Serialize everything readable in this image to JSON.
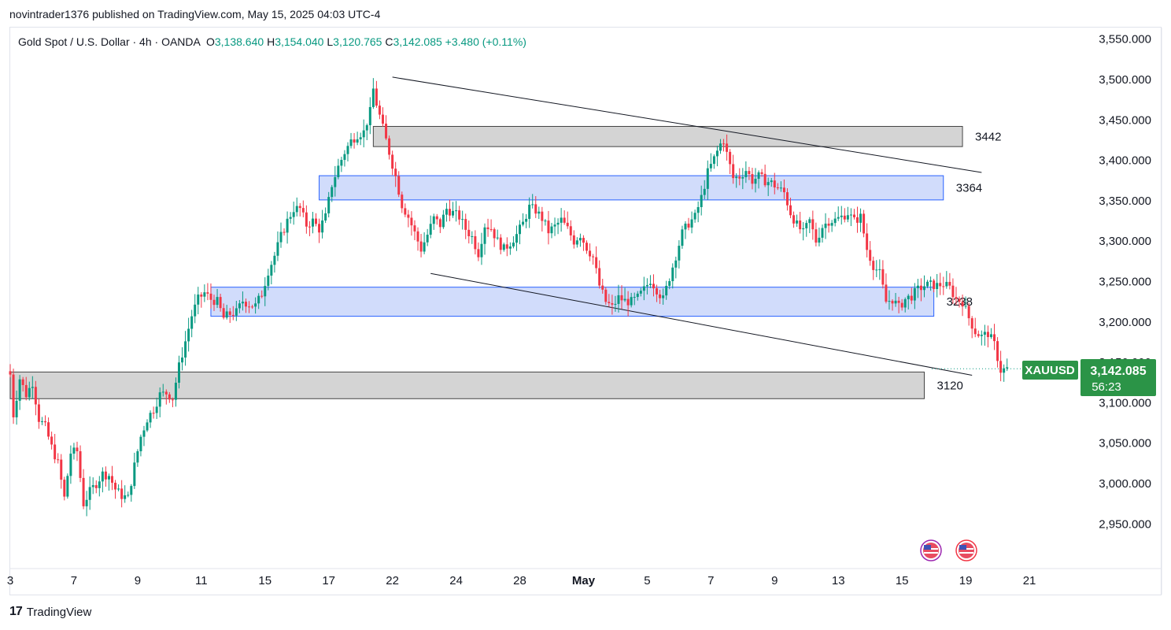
{
  "publish_line": "novintrader1376 published on TradingView.com, May 15, 2025 04:03 UTC-4",
  "legend": {
    "symbol": "Gold Spot / U.S. Dollar · 4h · OANDA",
    "o_label": "O",
    "o": "3,138.640",
    "h_label": "H",
    "h": "3,154.040",
    "l_label": "L",
    "l": "3,120.765",
    "c_label": "C",
    "c": "3,142.085",
    "change": "+3.480 (+0.11%)"
  },
  "price_tag": {
    "ticker": "XAUUSD",
    "price": "3,142.085",
    "countdown": "56:23"
  },
  "footer": {
    "brand": "TradingView",
    "logo": "17"
  },
  "colors": {
    "up": "#089981",
    "down": "#f23645",
    "blue_zone": "#d1dcfb",
    "blue_border": "#2962ff",
    "gray_zone": "#d4d4d4",
    "tag": "#2b9447"
  },
  "chart_data": {
    "type": "candlestick",
    "ylim": [
      2900,
      3570
    ],
    "y_ticks": [
      "3,550.000",
      "3,500.000",
      "3,450.000",
      "3,400.000",
      "3,350.000",
      "3,300.000",
      "3,250.000",
      "3,200.000",
      "3,150.000",
      "3,100.000",
      "3,050.000",
      "3,000.000",
      "2,950.000"
    ],
    "y_tick_values": [
      3550,
      3500,
      3450,
      3400,
      3350,
      3300,
      3250,
      3200,
      3150,
      3100,
      3050,
      3000,
      2950
    ],
    "x_ticks": [
      {
        "label": "3",
        "pos": 0
      },
      {
        "label": "7",
        "pos": 20
      },
      {
        "label": "9",
        "pos": 40
      },
      {
        "label": "11",
        "pos": 60
      },
      {
        "label": "15",
        "pos": 80
      },
      {
        "label": "17",
        "pos": 100
      },
      {
        "label": "22",
        "pos": 120
      },
      {
        "label": "24",
        "pos": 140
      },
      {
        "label": "28",
        "pos": 160
      },
      {
        "label": "May",
        "pos": 180
      },
      {
        "label": "5",
        "pos": 200
      },
      {
        "label": "7",
        "pos": 220
      },
      {
        "label": "9",
        "pos": 240
      },
      {
        "label": "13",
        "pos": 260
      },
      {
        "label": "15",
        "pos": 280
      },
      {
        "label": "19",
        "pos": 300
      },
      {
        "label": "21",
        "pos": 320
      }
    ],
    "anchors": [
      [
        0,
        3135
      ],
      [
        1,
        3085
      ],
      [
        3,
        3130
      ],
      [
        5,
        3110
      ],
      [
        7,
        3125
      ],
      [
        9,
        3080
      ],
      [
        11,
        3070
      ],
      [
        13,
        3045
      ],
      [
        15,
        3025
      ],
      [
        17,
        2982
      ],
      [
        19,
        3038
      ],
      [
        21,
        3040
      ],
      [
        23,
        2975
      ],
      [
        25,
        2990
      ],
      [
        27,
        3000
      ],
      [
        29,
        3012
      ],
      [
        31,
        3010
      ],
      [
        33,
        2993
      ],
      [
        35,
        2985
      ],
      [
        37,
        2982
      ],
      [
        39,
        3022
      ],
      [
        41,
        3058
      ],
      [
        43,
        3080
      ],
      [
        45,
        3092
      ],
      [
        47,
        3110
      ],
      [
        49,
        3112
      ],
      [
        51,
        3106
      ],
      [
        53,
        3145
      ],
      [
        55,
        3176
      ],
      [
        57,
        3208
      ],
      [
        59,
        3228
      ],
      [
        61,
        3236
      ],
      [
        63,
        3228
      ],
      [
        65,
        3225
      ],
      [
        67,
        3205
      ],
      [
        69,
        3210
      ],
      [
        71,
        3212
      ],
      [
        73,
        3226
      ],
      [
        75,
        3222
      ],
      [
        77,
        3220
      ],
      [
        79,
        3235
      ],
      [
        81,
        3263
      ],
      [
        83,
        3282
      ],
      [
        85,
        3306
      ],
      [
        87,
        3325
      ],
      [
        89,
        3340
      ],
      [
        91,
        3340
      ],
      [
        93,
        3320
      ],
      [
        95,
        3325
      ],
      [
        97,
        3315
      ],
      [
        99,
        3330
      ],
      [
        101,
        3370
      ],
      [
        103,
        3392
      ],
      [
        105,
        3410
      ],
      [
        107,
        3424
      ],
      [
        109,
        3432
      ],
      [
        111,
        3435
      ],
      [
        113,
        3460
      ],
      [
        114,
        3488
      ],
      [
        115,
        3470
      ],
      [
        117,
        3440
      ],
      [
        119,
        3410
      ],
      [
        121,
        3380
      ],
      [
        123,
        3345
      ],
      [
        125,
        3330
      ],
      [
        127,
        3310
      ],
      [
        129,
        3290
      ],
      [
        131,
        3308
      ],
      [
        133,
        3328
      ],
      [
        135,
        3320
      ],
      [
        137,
        3340
      ],
      [
        139,
        3335
      ],
      [
        141,
        3330
      ],
      [
        143,
        3315
      ],
      [
        145,
        3305
      ],
      [
        147,
        3285
      ],
      [
        149,
        3320
      ],
      [
        151,
        3316
      ],
      [
        153,
        3300
      ],
      [
        155,
        3290
      ],
      [
        157,
        3298
      ],
      [
        159,
        3308
      ],
      [
        161,
        3322
      ],
      [
        163,
        3342
      ],
      [
        165,
        3338
      ],
      [
        167,
        3328
      ],
      [
        169,
        3312
      ],
      [
        171,
        3318
      ],
      [
        173,
        3326
      ],
      [
        175,
        3315
      ],
      [
        177,
        3300
      ],
      [
        179,
        3308
      ],
      [
        181,
        3292
      ],
      [
        183,
        3280
      ],
      [
        185,
        3245
      ],
      [
        187,
        3225
      ],
      [
        189,
        3218
      ],
      [
        191,
        3230
      ],
      [
        193,
        3226
      ],
      [
        195,
        3225
      ],
      [
        197,
        3230
      ],
      [
        199,
        3240
      ],
      [
        201,
        3252
      ],
      [
        203,
        3240
      ],
      [
        205,
        3228
      ],
      [
        207,
        3255
      ],
      [
        209,
        3282
      ],
      [
        211,
        3310
      ],
      [
        213,
        3322
      ],
      [
        215,
        3330
      ],
      [
        217,
        3354
      ],
      [
        219,
        3385
      ],
      [
        221,
        3402
      ],
      [
        223,
        3420
      ],
      [
        224,
        3425
      ],
      [
        225,
        3408
      ],
      [
        227,
        3378
      ],
      [
        229,
        3380
      ],
      [
        231,
        3388
      ],
      [
        233,
        3375
      ],
      [
        235,
        3380
      ],
      [
        237,
        3375
      ],
      [
        239,
        3372
      ],
      [
        241,
        3366
      ],
      [
        243,
        3360
      ],
      [
        245,
        3335
      ],
      [
        247,
        3320
      ],
      [
        249,
        3310
      ],
      [
        251,
        3325
      ],
      [
        253,
        3300
      ],
      [
        255,
        3318
      ],
      [
        257,
        3325
      ],
      [
        259,
        3326
      ],
      [
        261,
        3330
      ],
      [
        263,
        3335
      ],
      [
        265,
        3325
      ],
      [
        267,
        3330
      ],
      [
        269,
        3290
      ],
      [
        271,
        3270
      ],
      [
        273,
        3260
      ],
      [
        275,
        3225
      ],
      [
        277,
        3228
      ],
      [
        279,
        3218
      ],
      [
        281,
        3228
      ],
      [
        283,
        3232
      ],
      [
        285,
        3240
      ],
      [
        287,
        3245
      ],
      [
        289,
        3246
      ],
      [
        291,
        3245
      ],
      [
        293,
        3247
      ],
      [
        295,
        3242
      ],
      [
        297,
        3228
      ],
      [
        299,
        3225
      ],
      [
        301,
        3205
      ],
      [
        303,
        3188
      ],
      [
        305,
        3182
      ],
      [
        307,
        3186
      ],
      [
        309,
        3172
      ],
      [
        311,
        3140
      ],
      [
        313,
        3142
      ]
    ],
    "zones": [
      {
        "y1": 3442,
        "y2": 3417,
        "x1": 114,
        "x2": 299,
        "color": "gray",
        "label": "3442"
      },
      {
        "y1": 3381,
        "y2": 3351,
        "x1": 97,
        "x2": 293,
        "color": "blue",
        "label": "3364"
      },
      {
        "y1": 3243,
        "y2": 3207,
        "x1": 63,
        "x2": 290,
        "color": "blue",
        "label": "3238"
      },
      {
        "y1": 3138,
        "y2": 3105,
        "x1": 0,
        "x2": 287,
        "color": "gray",
        "label": "3120"
      }
    ],
    "trendlines": [
      {
        "x1": 120,
        "y1": 3503,
        "x2": 305,
        "y2": 3385
      },
      {
        "x1": 132,
        "y1": 3260,
        "x2": 302,
        "y2": 3134
      }
    ],
    "last_price": 3142.085
  }
}
